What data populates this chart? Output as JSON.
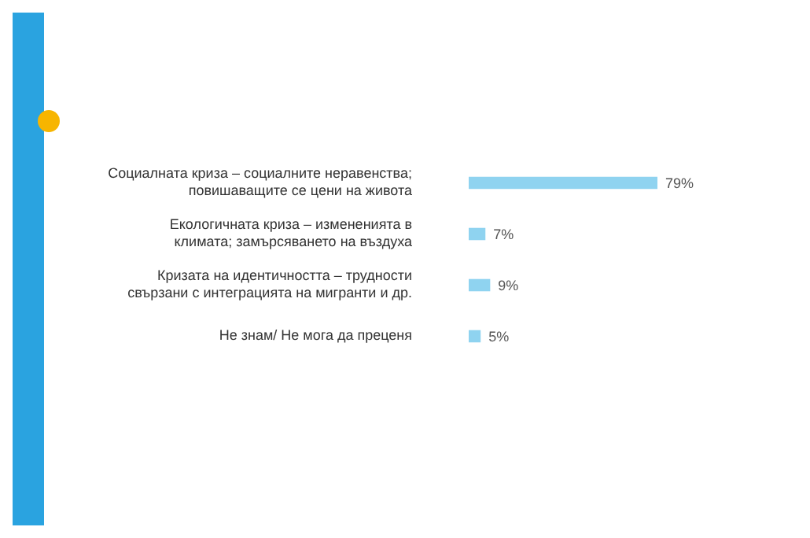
{
  "chart_data": {
    "type": "bar",
    "orientation": "horizontal",
    "categories": [
      "Социалната криза – социалните неравенства; повишаващите се цени на живота",
      "Екологичната криза – измененията в климата; замърсяването на въздуха",
      "Кризата на идентичността – трудности свързани с интеграцията на мигранти и др.",
      "Не знам/ Не мога да преценя"
    ],
    "values": [
      79,
      7,
      9,
      5
    ],
    "value_labels": [
      "79%",
      "7%",
      "9%",
      "5%"
    ],
    "color": "#8fd3f0",
    "tick_labels": "y"
  }
}
